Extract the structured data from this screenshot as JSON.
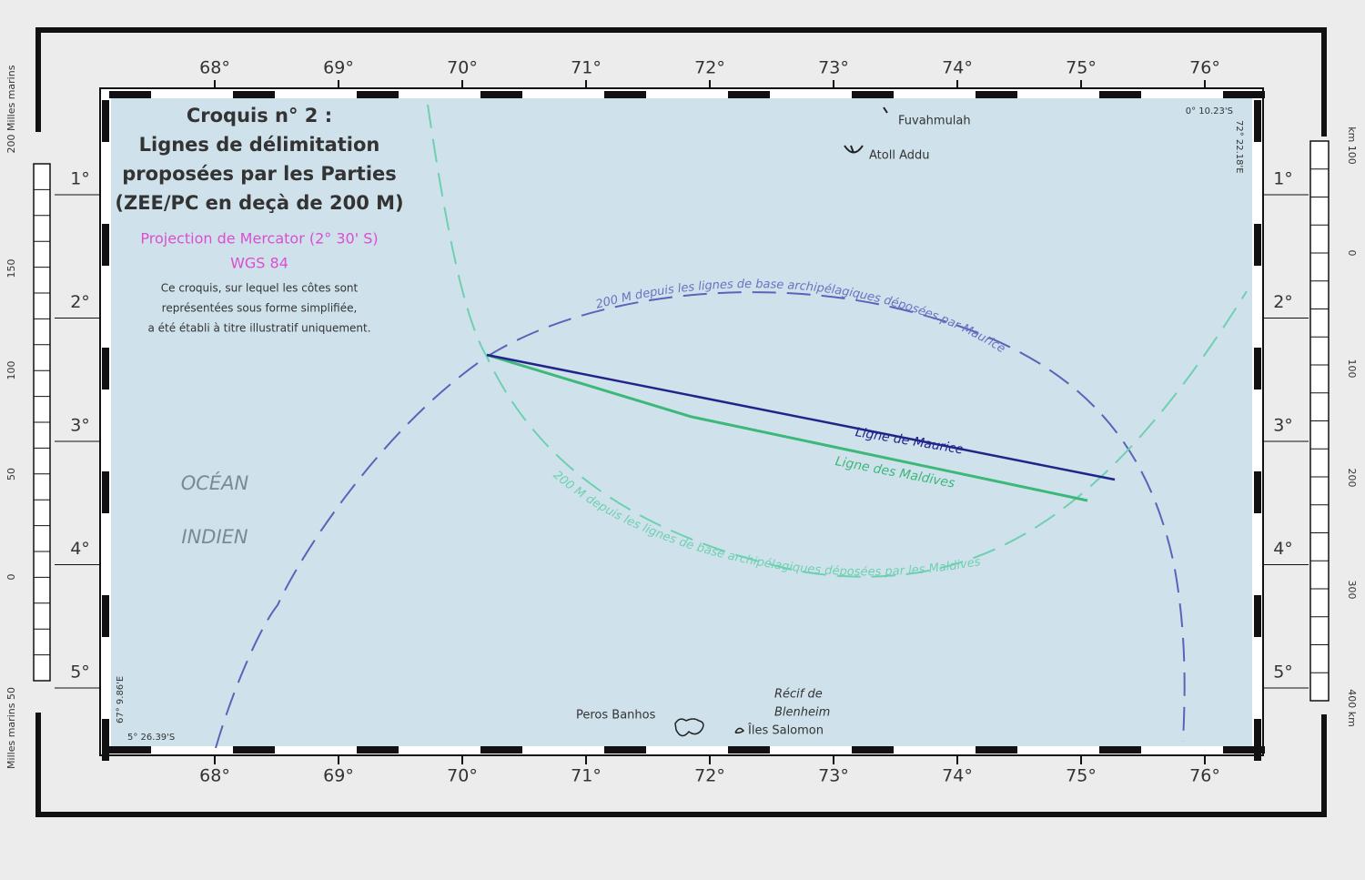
{
  "title": [
    "Croquis n° 2 :",
    "Lignes de délimitation",
    "proposées par les Parties",
    "(ZEE/PC en deçà de 200 M)"
  ],
  "projection": [
    "Projection de Mercator (2° 30' S)",
    "WGS 84"
  ],
  "note": [
    "Ce croquis, sur lequel les côtes sont",
    "représentées sous forme simplifiée,",
    "a été établi à titre illustratif uniquement."
  ],
  "longitude_labels": [
    "68°",
    "69°",
    "70°",
    "71°",
    "72°",
    "73°",
    "74°",
    "75°",
    "76°"
  ],
  "latitude_labels": [
    "1°",
    "2°",
    "3°",
    "4°",
    "5°"
  ],
  "ocean_label": [
    "OCÉAN",
    "INDIEN"
  ],
  "places": [
    "Fuvahmulah",
    "Atoll Addu",
    "Peros Banhos",
    "Récif de",
    "Blenheim",
    "Îles Salomon"
  ],
  "lines": {
    "maurice": "Ligne de Maurice",
    "maldives": "Ligne des Maldives",
    "arc_maurice": "200 M depuis les lignes de base archipélagiques déposées par Maurice",
    "arc_maldives": "200 M depuis les lignes de base archipélagiques déposées par les Maldives"
  },
  "corners": [
    "0° 10.23'S",
    "72° 22.18'E",
    "67° 9.86'E",
    "5° 26.39'S"
  ],
  "scale_left": [
    "200 Milles marins",
    "150",
    "100",
    "50",
    "0",
    "Milles marins 50"
  ],
  "scale_right": [
    "km 100",
    "0",
    "100",
    "200",
    "300",
    "400 km"
  ]
}
